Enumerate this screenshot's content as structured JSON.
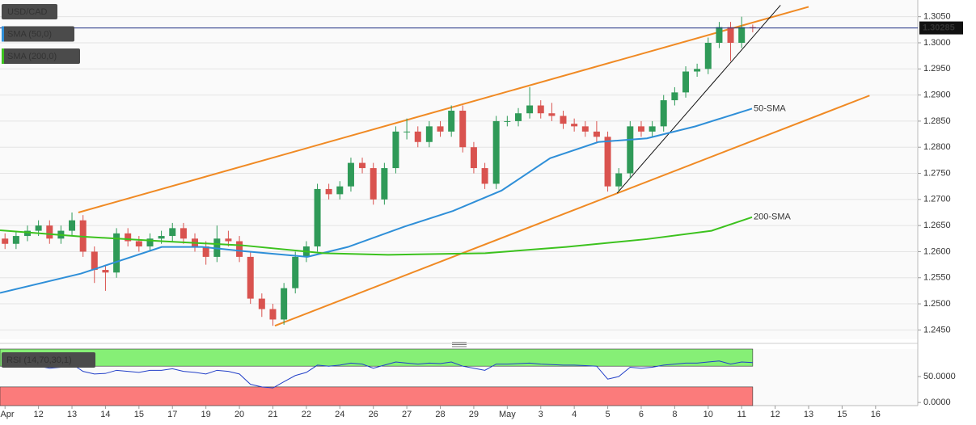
{
  "chart_data": [
    {
      "type": "candlestick",
      "xlim": [
        -0.15,
        27.26
      ],
      "ylim": [
        1.2432,
        1.3082
      ],
      "grid": true,
      "yticks": [
        {
          "value": 1.245,
          "label": "1.2450"
        },
        {
          "value": 1.25,
          "label": "1.2500"
        },
        {
          "value": 1.255,
          "label": "1.2550"
        },
        {
          "value": 1.26,
          "label": "1.2600"
        },
        {
          "value": 1.265,
          "label": "1.2650"
        },
        {
          "value": 1.27,
          "label": "1.2700"
        },
        {
          "value": 1.275,
          "label": "1.2750"
        },
        {
          "value": 1.28,
          "label": "1.2800"
        },
        {
          "value": 1.285,
          "label": "1.2850"
        },
        {
          "value": 1.29,
          "label": "1.2900"
        },
        {
          "value": 1.295,
          "label": "1.2950"
        },
        {
          "value": 1.3,
          "label": "1.3000"
        },
        {
          "value": 1.305,
          "label": "1.3050"
        }
      ],
      "last_price": 1.30285,
      "last_price_color": "#1a2a80",
      "series": [
        {
          "name": "USD/CAD",
          "type": "candlestick",
          "up_color": "#2f9a58",
          "down_color": "#d9534f",
          "x": [
            0,
            0.33,
            0.67,
            1,
            1.33,
            1.67,
            2,
            2.33,
            2.67,
            3,
            3.33,
            3.67,
            4,
            4.33,
            4.67,
            5,
            5.33,
            5.67,
            6,
            6.33,
            6.67,
            7,
            7.33,
            7.67,
            8,
            8.33,
            8.67,
            9,
            9.33,
            9.67,
            10,
            10.33,
            10.67,
            11,
            11.33,
            11.67,
            12,
            12.33,
            12.67,
            13,
            13.33,
            13.67,
            14,
            14.33,
            14.67,
            15,
            15.33,
            15.67,
            16,
            16.33,
            16.67,
            17,
            17.33,
            17.67,
            18,
            18.33,
            18.67,
            19,
            19.33,
            19.67,
            20,
            20.33,
            20.67,
            21,
            21.33,
            21.67,
            22,
            22.33
          ],
          "open": [
            1.2625,
            1.2615,
            1.263,
            1.264,
            1.265,
            1.2625,
            1.264,
            1.266,
            1.26,
            1.2565,
            1.256,
            1.2635,
            1.262,
            1.261,
            1.2625,
            1.263,
            1.2645,
            1.2625,
            1.261,
            1.259,
            1.2625,
            1.262,
            1.259,
            1.251,
            1.249,
            1.247,
            1.253,
            1.259,
            1.261,
            1.272,
            1.271,
            1.2725,
            1.277,
            1.276,
            1.27,
            1.276,
            1.283,
            1.283,
            1.281,
            1.284,
            1.283,
            1.287,
            1.28,
            1.276,
            1.273,
            1.285,
            1.285,
            1.2865,
            1.288,
            1.2865,
            1.286,
            1.2845,
            1.284,
            1.283,
            1.282,
            1.2725,
            1.275,
            1.284,
            1.283,
            1.284,
            1.289,
            1.2905,
            1.2945,
            1.295,
            1.3,
            1.303,
            1.3,
            1.303
          ],
          "high": [
            1.2635,
            1.264,
            1.265,
            1.266,
            1.266,
            1.265,
            1.2675,
            1.267,
            1.261,
            1.2575,
            1.2645,
            1.2645,
            1.263,
            1.2635,
            1.264,
            1.2655,
            1.2655,
            1.2635,
            1.262,
            1.265,
            1.264,
            1.263,
            1.26,
            1.252,
            1.25,
            1.254,
            1.26,
            1.262,
            1.273,
            1.273,
            1.2735,
            1.278,
            1.278,
            1.277,
            1.277,
            1.284,
            1.2855,
            1.284,
            1.285,
            1.285,
            1.288,
            1.288,
            1.281,
            1.277,
            1.286,
            1.286,
            1.2875,
            1.2915,
            1.289,
            1.2885,
            1.287,
            1.2855,
            1.285,
            1.285,
            1.283,
            1.276,
            1.285,
            1.285,
            1.285,
            1.29,
            1.2915,
            1.2955,
            1.296,
            1.301,
            1.304,
            1.304,
            1.305,
            1.3035
          ],
          "low": [
            1.2605,
            1.2605,
            1.262,
            1.263,
            1.2615,
            1.2615,
            1.263,
            1.259,
            1.254,
            1.2525,
            1.255,
            1.261,
            1.26,
            1.26,
            1.2615,
            1.262,
            1.2615,
            1.26,
            1.2575,
            1.258,
            1.261,
            1.258,
            1.25,
            1.2475,
            1.2458,
            1.246,
            1.252,
            1.258,
            1.26,
            1.27,
            1.27,
            1.2715,
            1.275,
            1.269,
            1.269,
            1.275,
            1.2815,
            1.28,
            1.28,
            1.282,
            1.282,
            1.279,
            1.275,
            1.272,
            1.272,
            1.284,
            1.284,
            1.2855,
            1.2855,
            1.285,
            1.2835,
            1.283,
            1.282,
            1.281,
            1.2715,
            1.2715,
            1.274,
            1.282,
            1.282,
            1.283,
            1.288,
            1.2895,
            1.2935,
            1.294,
            1.299,
            1.2965,
            1.299,
            1.302
          ],
          "close": [
            1.2615,
            1.263,
            1.264,
            1.265,
            1.2625,
            1.264,
            1.266,
            1.26,
            1.2565,
            1.256,
            1.2635,
            1.262,
            1.261,
            1.2625,
            1.263,
            1.2645,
            1.2625,
            1.261,
            1.259,
            1.2625,
            1.262,
            1.259,
            1.251,
            1.249,
            1.247,
            1.253,
            1.259,
            1.261,
            1.272,
            1.271,
            1.2725,
            1.277,
            1.276,
            1.27,
            1.276,
            1.283,
            1.283,
            1.281,
            1.284,
            1.283,
            1.287,
            1.28,
            1.276,
            1.273,
            1.285,
            1.285,
            1.2865,
            1.288,
            1.2865,
            1.286,
            1.2845,
            1.284,
            1.283,
            1.282,
            1.2725,
            1.275,
            1.284,
            1.283,
            1.284,
            1.289,
            1.2905,
            1.2945,
            1.295,
            1.3,
            1.303,
            1.3,
            1.303,
            1.3028
          ]
        },
        {
          "name": "SMA (50,0)",
          "type": "line",
          "label": "50-SMA",
          "color": "#2f8fd8",
          "x": [
            -0.15,
            2.27,
            4.68,
            5.89,
            7.1,
            9.03,
            10.24,
            11.93,
            13.38,
            14.83,
            16.28,
            17.72,
            19.17,
            20.62,
            22.31
          ],
          "values": [
            1.2521,
            1.2558,
            1.2609,
            1.2609,
            1.2601,
            1.259,
            1.2609,
            1.2648,
            1.2678,
            1.2717,
            1.2779,
            1.281,
            1.2817,
            1.284,
            1.2874
          ]
        },
        {
          "name": "SMA (200,0)",
          "type": "line",
          "label": "200-SMA",
          "color": "#3cc21e",
          "x": [
            -0.15,
            2.27,
            4.68,
            7.1,
            9.51,
            11.44,
            14.34,
            16.76,
            19.17,
            21.1,
            22.31
          ],
          "values": [
            1.2641,
            1.2629,
            1.262,
            1.2612,
            1.2597,
            1.2594,
            1.2597,
            1.2609,
            1.2624,
            1.264,
            1.2666
          ]
        }
      ],
      "trend_lines": [
        {
          "color": "#f08a24",
          "x": [
            2.19,
            24.0
          ],
          "values": [
            1.2675,
            1.3069
          ]
        },
        {
          "color": "#f08a24",
          "x": [
            8.06,
            25.82
          ],
          "values": [
            1.2458,
            1.2899
          ]
        },
        {
          "color": "#111111",
          "x": [
            18.28,
            23.16
          ],
          "values": [
            1.2712,
            1.3072
          ]
        }
      ]
    },
    {
      "type": "line",
      "title": "RSI (14,70,30,1)",
      "xlim": [
        -0.15,
        27.26
      ],
      "ylim": [
        -6,
        103
      ],
      "yticks": [
        {
          "value": 0,
          "label": "0.0000"
        },
        {
          "value": 50,
          "label": "50.0000"
        }
      ],
      "overbought": 70,
      "overbought_color": "#86ef76",
      "oversold": 30,
      "oversold_color": "#fb7b7b",
      "color": "#2340c8",
      "x": [
        0,
        0.33,
        0.67,
        1,
        1.33,
        1.67,
        2,
        2.33,
        2.67,
        3,
        3.33,
        3.67,
        4,
        4.33,
        4.67,
        5,
        5.33,
        5.67,
        6,
        6.33,
        6.67,
        7,
        7.33,
        7.67,
        8,
        8.33,
        8.67,
        9,
        9.33,
        9.67,
        10,
        10.33,
        10.67,
        11,
        11.33,
        11.67,
        12,
        12.33,
        12.67,
        13,
        13.33,
        13.67,
        14,
        14.33,
        14.67,
        15,
        15.33,
        15.67,
        16,
        16.33,
        16.67,
        17,
        17.33,
        17.67,
        18,
        18.33,
        18.67,
        19,
        19.33,
        19.67,
        20,
        20.33,
        20.67,
        21,
        21.33,
        21.67,
        22,
        22.33
      ],
      "values": [
        70,
        68,
        72,
        70,
        66,
        68,
        74,
        60,
        55,
        56,
        62,
        60,
        58,
        62,
        62,
        65,
        60,
        58,
        55,
        62,
        60,
        55,
        35,
        30,
        28,
        40,
        52,
        58,
        72,
        70,
        72,
        76,
        74,
        66,
        72,
        78,
        76,
        74,
        76,
        75,
        78,
        70,
        66,
        62,
        74,
        74,
        75,
        76,
        74,
        73,
        72,
        72,
        71,
        70,
        45,
        50,
        68,
        66,
        68,
        72,
        74,
        76,
        76,
        78,
        80,
        74,
        78,
        77
      ],
      "xticks": [
        {
          "value": 0,
          "label": "Apr"
        },
        {
          "value": 1,
          "label": "12"
        },
        {
          "value": 2,
          "label": "13"
        },
        {
          "value": 3,
          "label": "14"
        },
        {
          "value": 4,
          "label": "15"
        },
        {
          "value": 5,
          "label": "17"
        },
        {
          "value": 6,
          "label": "19"
        },
        {
          "value": 7,
          "label": "20"
        },
        {
          "value": 8,
          "label": "21"
        },
        {
          "value": 9,
          "label": "22"
        },
        {
          "value": 10,
          "label": "24"
        },
        {
          "value": 11,
          "label": "26"
        },
        {
          "value": 12,
          "label": "27"
        },
        {
          "value": 13,
          "label": "28"
        },
        {
          "value": 14,
          "label": "29"
        },
        {
          "value": 15,
          "label": "May"
        },
        {
          "value": 16,
          "label": "3"
        },
        {
          "value": 17,
          "label": "4"
        },
        {
          "value": 18,
          "label": "5"
        },
        {
          "value": 19,
          "label": "6"
        },
        {
          "value": 20,
          "label": "8"
        },
        {
          "value": 21,
          "label": "10"
        },
        {
          "value": 22,
          "label": "11"
        },
        {
          "value": 23,
          "label": "12"
        },
        {
          "value": 24,
          "label": "13"
        },
        {
          "value": 25,
          "label": "15"
        },
        {
          "value": 26,
          "label": "16"
        }
      ]
    }
  ]
}
